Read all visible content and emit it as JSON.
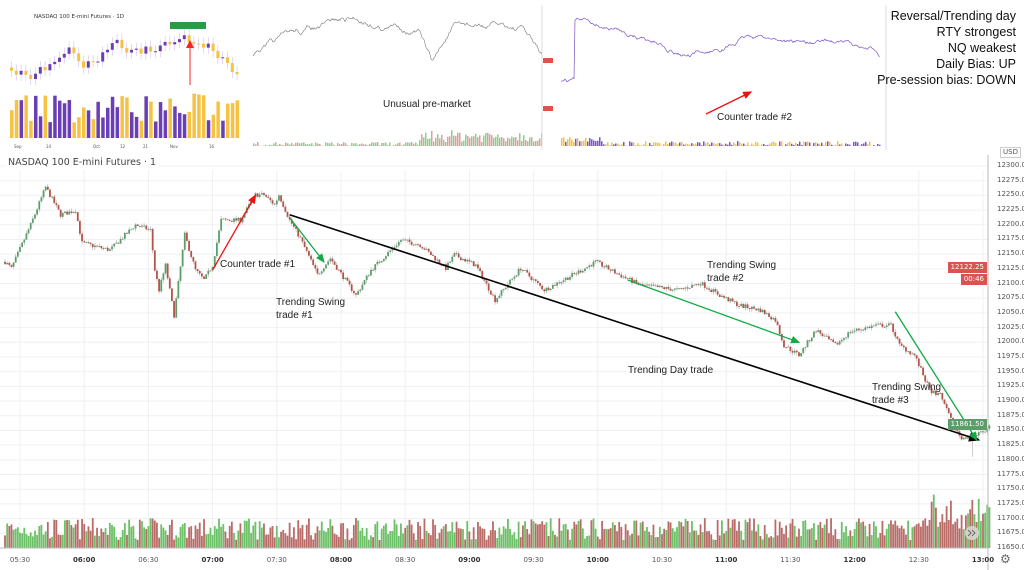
{
  "notes": [
    "Reversal/Trending day",
    "RTY strongest",
    "NQ weakest",
    "Daily Bias: UP",
    "Pre-session bias: DOWN"
  ],
  "insets": {
    "daily": {
      "title": "NASDAQ 100 E-mini Futures · 1D",
      "colors": {
        "up": "#6a3fb5",
        "down": "#f5c242"
      },
      "x_labels": [
        "Sep",
        "14",
        "Oct",
        "12",
        "21",
        "Nov",
        "16"
      ]
    },
    "nq_premarket": {
      "annotation": "Unusual pre-market"
    },
    "rty": {
      "annotation": "Counter trade #2"
    }
  },
  "chart_data": {
    "type": "candlestick",
    "title": "NASDAQ 100 E-mini Futures · 1",
    "currency": "USD",
    "interval_minutes": 1,
    "ylim": [
      11650,
      12300
    ],
    "y_ticks": [
      "12300.00",
      "12275.00",
      "12250.00",
      "12225.00",
      "12200.00",
      "12175.00",
      "12150.00",
      "12125.00",
      "12100.00",
      "12075.00",
      "12050.00",
      "12025.00",
      "12000.00",
      "11975.00",
      "11950.00",
      "11925.00",
      "11900.00",
      "11875.00",
      "11850.00",
      "11825.00",
      "11800.00",
      "11775.00",
      "11750.00",
      "11725.00",
      "11700.00",
      "11675.00",
      "11650.00"
    ],
    "x_ticks": [
      "05:30",
      "06:00",
      "06:30",
      "07:00",
      "07:30",
      "08:00",
      "08:30",
      "09:00",
      "09:30",
      "10:00",
      "10:30",
      "11:00",
      "11:30",
      "12:00",
      "12:30",
      "13:00"
    ],
    "grid": true,
    "colors": {
      "up": "#5b9e6a",
      "down": "#b4534a",
      "vol_up": "#6cc067",
      "vol_down": "#b96b68"
    },
    "price_path": [
      [
        "05:23",
        12137
      ],
      [
        "05:26",
        12126
      ],
      [
        "05:35",
        12200
      ],
      [
        "05:42",
        12264
      ],
      [
        "05:49",
        12217
      ],
      [
        "05:56",
        12225
      ],
      [
        "05:59",
        12169
      ],
      [
        "06:12",
        12157
      ],
      [
        "06:24",
        12200
      ],
      [
        "06:31",
        12191
      ],
      [
        "06:33",
        12123
      ],
      [
        "06:35",
        12089
      ],
      [
        "06:38",
        12131
      ],
      [
        "06:42",
        12046
      ],
      [
        "06:47",
        12183
      ],
      [
        "06:52",
        12123
      ],
      [
        "06:56",
        12106
      ],
      [
        "07:00",
        12131
      ],
      [
        "07:04",
        12208
      ],
      [
        "07:13",
        12208
      ],
      [
        "07:20",
        12251
      ],
      [
        "07:24",
        12251
      ],
      [
        "07:29",
        12234
      ],
      [
        "07:31",
        12251
      ],
      [
        "07:36",
        12208
      ],
      [
        "07:41",
        12177
      ],
      [
        "07:49",
        12115
      ],
      [
        "07:55",
        12143
      ],
      [
        "08:07",
        12080
      ],
      [
        "08:14",
        12123
      ],
      [
        "08:28",
        12174
      ],
      [
        "08:37",
        12166
      ],
      [
        "08:49",
        12126
      ],
      [
        "08:53",
        12149
      ],
      [
        "09:03",
        12131
      ],
      [
        "09:12",
        12072
      ],
      [
        "09:24",
        12126
      ],
      [
        "09:35",
        12089
      ],
      [
        "09:54",
        12126
      ],
      [
        "09:59",
        12137
      ],
      [
        "10:10",
        12115
      ],
      [
        "10:20",
        12097
      ],
      [
        "10:38",
        12089
      ],
      [
        "10:48",
        12101
      ],
      [
        "10:57",
        12080
      ],
      [
        "11:06",
        12063
      ],
      [
        "11:16",
        12055
      ],
      [
        "11:23",
        12038
      ],
      [
        "11:27",
        11995
      ],
      [
        "11:34",
        11978
      ],
      [
        "11:42",
        12021
      ],
      [
        "11:51",
        11995
      ],
      [
        "11:58",
        12018
      ],
      [
        "12:10",
        12029
      ],
      [
        "12:17",
        12029
      ],
      [
        "12:21",
        11995
      ],
      [
        "12:28",
        11978
      ],
      [
        "12:31",
        11953
      ],
      [
        "12:35",
        11919
      ],
      [
        "12:40",
        11910
      ],
      [
        "12:45",
        11868
      ],
      [
        "12:50",
        11834
      ],
      [
        "12:55",
        11842
      ],
      [
        "13:01",
        11847
      ],
      [
        "13:03",
        11855
      ]
    ],
    "spike_low": [
      "12:55",
      11805
    ],
    "last_price": "11861.50",
    "marker_price": "12122.25",
    "marker_countdown": "00:46",
    "annotations": [
      {
        "label": "Counter trade #1",
        "color": "#ee1111",
        "from": [
          "07:00",
          12123
        ],
        "to": [
          "07:20",
          12250
        ]
      },
      {
        "label": "Trending Swing trade #1",
        "color": "#11aa44",
        "from": [
          "07:36",
          12212
        ],
        "to": [
          "07:52",
          12137
        ]
      },
      {
        "label": "Trending Day trade",
        "color": "#000000",
        "from": [
          "07:36",
          12217
        ],
        "to": [
          "12:58",
          11834
        ]
      },
      {
        "label": "Trending Swing trade #2",
        "color": "#11aa44",
        "from": [
          "10:14",
          12106
        ],
        "to": [
          "11:34",
          12000
        ]
      },
      {
        "label": "Trending Swing trade #3",
        "color": "#11aa44",
        "from": [
          "12:19",
          12052
        ],
        "to": [
          "12:57",
          11834
        ]
      }
    ]
  }
}
